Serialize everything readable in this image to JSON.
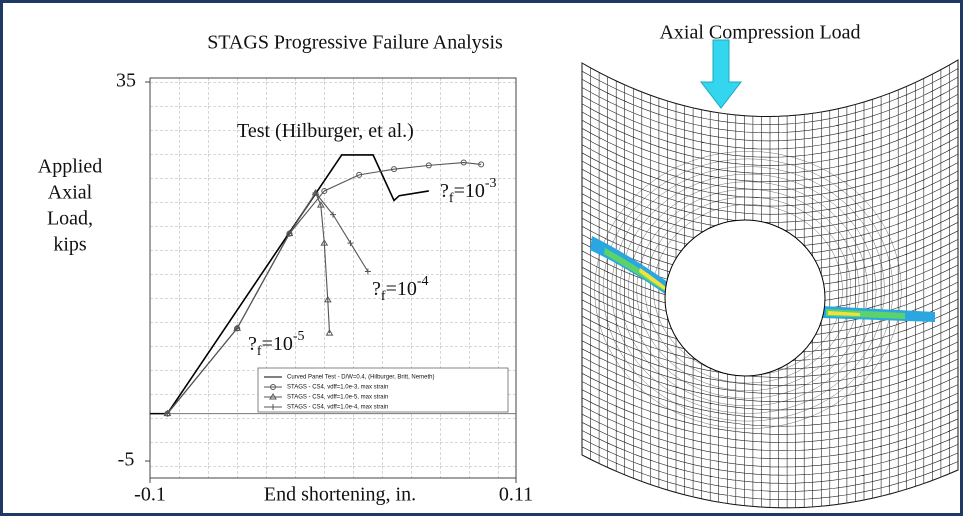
{
  "chart_data": {
    "type": "line",
    "title": "STAGS Progressive Failure Analysis",
    "x_label": "End shortening, in.",
    "y_label": [
      "Applied",
      "Axial",
      "Load,",
      "kips"
    ],
    "xlim": [
      -0.1,
      0.11
    ],
    "ylim": [
      -5,
      35
    ],
    "xticks": [
      -0.1,
      0.11
    ],
    "yticks": [
      35,
      -5
    ],
    "grid": true,
    "series": [
      {
        "name": "Curved Panel Test - D/W=0.4, (Hilburger, Britt, Nemeth)",
        "color": "#000000",
        "marker": "none",
        "x": [
          -0.1,
          -0.09,
          0.01,
          0.028,
          0.04,
          0.043,
          0.06
        ],
        "values": [
          0,
          0,
          27.3,
          27.3,
          22.5,
          23,
          23.5
        ]
      },
      {
        "name": "STAGS - CS4, vdff=1.0e-3, max strain",
        "color": "#555555",
        "marker": "circle",
        "x": [
          -0.09,
          -0.05,
          -0.02,
          0,
          0.02,
          0.04,
          0.06,
          0.08,
          0.09
        ],
        "values": [
          0,
          9,
          19,
          23.5,
          25.2,
          25.8,
          26.2,
          26.5,
          26.3
        ]
      },
      {
        "name": "STAGS - CS4, vdff=1.0e-5, max strain",
        "color": "#555555",
        "marker": "triangle",
        "x": [
          -0.09,
          -0.05,
          -0.02,
          -0.005,
          -0.002,
          0,
          0.002,
          0.003
        ],
        "values": [
          0,
          9,
          19,
          23.3,
          22,
          18,
          12,
          8.5
        ]
      },
      {
        "name": "STAGS - CS4, vdff=1.0e-4, max strain",
        "color": "#555555",
        "marker": "plus",
        "x": [
          -0.09,
          -0.05,
          -0.02,
          -0.005,
          0.005,
          0.015,
          0.025
        ],
        "values": [
          0,
          9,
          19,
          23.3,
          21,
          18,
          15
        ]
      }
    ],
    "annotations": [
      {
        "text": "Test (Hilburger, et al.)"
      },
      {
        "text": "?",
        "sub": "f",
        "after": "=10",
        "sup": "-3"
      },
      {
        "text": "?",
        "sub": "f",
        "after": "=10",
        "sup": "-4"
      },
      {
        "text": "?",
        "sub": "f",
        "after": "=10",
        "sup": "-5"
      }
    ]
  },
  "image": {
    "title": "Axial Compression Load"
  }
}
